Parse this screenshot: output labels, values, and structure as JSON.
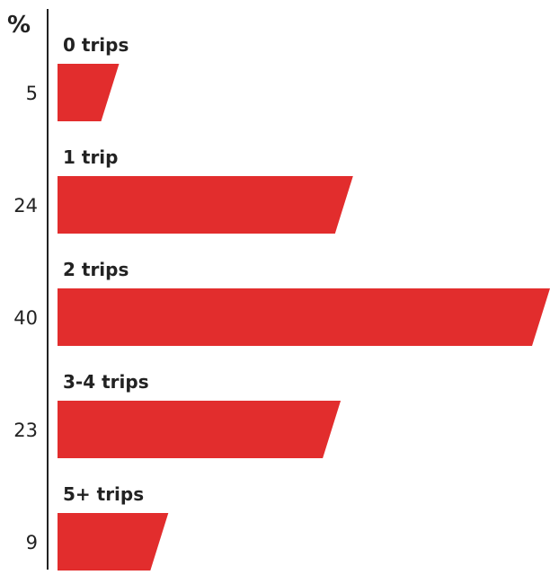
{
  "chart_data": {
    "type": "bar",
    "orientation": "horizontal",
    "unit_label": "%",
    "categories": [
      "0 trips",
      "1 trip",
      "2 trips",
      "3-4 trips",
      "5+ trips"
    ],
    "values": [
      5,
      24,
      40,
      23,
      9
    ],
    "value_labels": [
      "5",
      "24",
      "40",
      "23",
      "9"
    ],
    "xlim": [
      0,
      40
    ],
    "grid": false,
    "legend": "none"
  },
  "colors": {
    "bar": "#e22d2d",
    "axis": "#222222",
    "text": "#222222"
  }
}
